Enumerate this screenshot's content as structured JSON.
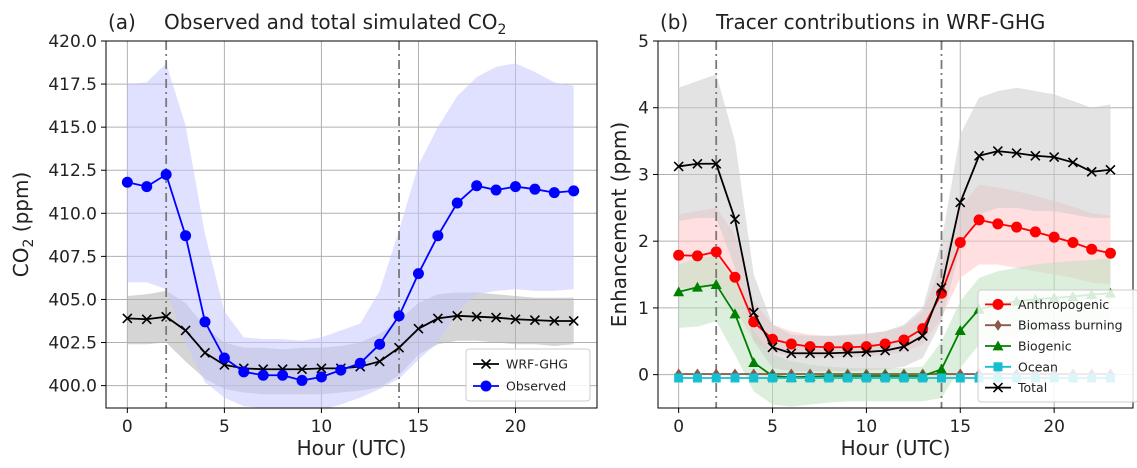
{
  "chart_data": [
    {
      "type": "line",
      "panel_label": "(a)",
      "title": "Observed and total simulated CO",
      "title_subscript": "2",
      "xlabel": "Hour (UTC)",
      "ylabel": "CO",
      "ylabel_subscript": "2",
      "ylabel_unit": " (ppm)",
      "xlim": [
        -1.1,
        24.2
      ],
      "ylim": [
        398.7,
        420.0
      ],
      "xticks": [
        0,
        5,
        10,
        15,
        20
      ],
      "yticks": [
        400.0,
        402.5,
        405.0,
        407.5,
        410.0,
        412.5,
        415.0,
        417.5,
        420.0
      ],
      "ytick_labels": [
        "400.0",
        "402.5",
        "405.0",
        "407.5",
        "410.0",
        "412.5",
        "415.0",
        "417.5",
        "420.0"
      ],
      "grid": true,
      "vlines": [
        2,
        14
      ],
      "legend_position": "lower-right",
      "x": [
        0,
        1,
        2,
        3,
        4,
        5,
        6,
        7,
        8,
        9,
        10,
        11,
        12,
        13,
        14,
        15,
        16,
        17,
        18,
        19,
        20,
        21,
        22,
        23
      ],
      "series": [
        {
          "name": "WRF-GHG",
          "color": "#000000",
          "marker": "x",
          "values": [
            403.9,
            403.85,
            404.0,
            403.2,
            401.9,
            401.2,
            401.0,
            400.95,
            400.95,
            400.95,
            401.0,
            401.0,
            401.1,
            401.4,
            402.2,
            403.3,
            403.9,
            404.05,
            404.0,
            403.95,
            403.85,
            403.8,
            403.75,
            403.75
          ],
          "band_lower": [
            402.4,
            402.4,
            402.5,
            401.4,
            400.4,
            399.8,
            399.6,
            399.5,
            399.5,
            399.5,
            399.5,
            399.6,
            399.7,
            399.9,
            400.6,
            401.8,
            402.4,
            402.6,
            402.6,
            402.5,
            402.4,
            402.4,
            402.3,
            402.4
          ],
          "band_upper": [
            405.2,
            405.3,
            405.5,
            404.8,
            403.4,
            402.5,
            402.2,
            402.2,
            402.1,
            402.2,
            402.2,
            402.3,
            402.5,
            403.0,
            403.8,
            404.8,
            405.3,
            405.4,
            405.4,
            405.3,
            405.2,
            405.1,
            405.1,
            405.1
          ],
          "band_color": "#b3b3b3"
        },
        {
          "name": "Observed",
          "color": "#0000ff",
          "marker": "o",
          "values": [
            411.8,
            411.55,
            412.25,
            408.7,
            403.7,
            401.6,
            400.8,
            400.6,
            400.6,
            400.3,
            400.5,
            400.9,
            401.3,
            402.4,
            404.05,
            406.5,
            408.7,
            410.6,
            411.6,
            411.35,
            411.55,
            411.4,
            411.2,
            411.3
          ],
          "band_lower": [
            406.0,
            406.0,
            405.6,
            402.5,
            400.2,
            399.3,
            398.8,
            398.7,
            398.7,
            398.6,
            398.6,
            398.9,
            399.3,
            399.8,
            400.4,
            401.5,
            402.5,
            404.3,
            405.3,
            405.5,
            405.6,
            405.5,
            405.5,
            405.6
          ],
          "band_upper": [
            417.5,
            417.6,
            418.7,
            415.1,
            408.8,
            404.3,
            402.8,
            402.7,
            402.7,
            402.6,
            402.8,
            403.2,
            403.6,
            405.5,
            409.0,
            412.8,
            415.0,
            416.8,
            417.9,
            418.5,
            418.7,
            418.2,
            417.6,
            417.4
          ],
          "band_color": "#c6c6ff"
        }
      ]
    },
    {
      "type": "line",
      "panel_label": "(b)",
      "title": "Tracer contributions in WRF-GHG",
      "xlabel": "Hour (UTC)",
      "ylabel": "Enhancement (ppm)",
      "xlim": [
        -1.1,
        24.2
      ],
      "ylim": [
        -0.5,
        5.0
      ],
      "xticks": [
        0,
        5,
        10,
        15,
        20
      ],
      "yticks": [
        0,
        1,
        2,
        3,
        4,
        5
      ],
      "ytick_labels": [
        "0",
        "1",
        "2",
        "3",
        "4",
        "5"
      ],
      "grid": true,
      "vlines": [
        2,
        14
      ],
      "legend_position": "lower-right",
      "x": [
        0,
        1,
        2,
        3,
        4,
        5,
        6,
        7,
        8,
        9,
        10,
        11,
        12,
        13,
        14,
        15,
        16,
        17,
        18,
        19,
        20,
        21,
        22,
        23
      ],
      "series": [
        {
          "name": "Anthropogenic",
          "color": "#ff0000",
          "marker": "o",
          "values": [
            1.79,
            1.78,
            1.84,
            1.46,
            0.79,
            0.53,
            0.46,
            0.42,
            0.41,
            0.41,
            0.42,
            0.46,
            0.52,
            0.69,
            1.22,
            1.98,
            2.32,
            2.26,
            2.21,
            2.14,
            2.06,
            1.98,
            1.88,
            1.82
          ],
          "band_lower": [
            1.3,
            1.3,
            1.35,
            1.0,
            0.5,
            0.33,
            0.28,
            0.26,
            0.26,
            0.26,
            0.27,
            0.3,
            0.34,
            0.45,
            0.85,
            1.45,
            1.65,
            1.65,
            1.6,
            1.55,
            1.5,
            1.45,
            1.38,
            1.35
          ],
          "band_upper": [
            2.4,
            2.45,
            2.5,
            2.1,
            1.1,
            0.75,
            0.65,
            0.6,
            0.58,
            0.58,
            0.6,
            0.65,
            0.72,
            0.95,
            1.65,
            2.5,
            2.85,
            2.8,
            2.75,
            2.68,
            2.6,
            2.52,
            2.42,
            2.38
          ],
          "band_color": "#ffc4c4"
        },
        {
          "name": "Biomass burning",
          "color": "#8c564b",
          "marker": "d",
          "values": [
            0.01,
            0.01,
            0.01,
            0.01,
            0.01,
            0.01,
            0.01,
            0.01,
            0.01,
            0.01,
            0.01,
            0.01,
            0.01,
            0.01,
            0.01,
            0.01,
            0.01,
            0.01,
            0.01,
            0.01,
            0.01,
            0.01,
            0.01,
            0.01
          ]
        },
        {
          "name": "Biogenic",
          "color": "#008000",
          "marker": "^",
          "values": [
            1.24,
            1.31,
            1.35,
            0.91,
            0.18,
            -0.02,
            -0.04,
            -0.03,
            -0.02,
            -0.02,
            -0.02,
            -0.02,
            -0.02,
            -0.02,
            0.08,
            0.66,
            0.98,
            1.05,
            1.1,
            1.13,
            1.15,
            1.17,
            1.2,
            1.22
          ],
          "band_lower": [
            0.7,
            0.72,
            0.8,
            0.3,
            -0.25,
            -0.45,
            -0.48,
            -0.45,
            -0.42,
            -0.4,
            -0.4,
            -0.4,
            -0.4,
            -0.4,
            -0.35,
            0.1,
            0.45,
            0.55,
            0.6,
            0.62,
            0.65,
            0.68,
            0.7,
            0.72
          ],
          "band_upper": [
            1.65,
            1.75,
            1.78,
            1.4,
            0.65,
            0.3,
            0.2,
            0.15,
            0.12,
            0.1,
            0.1,
            0.1,
            0.1,
            0.12,
            0.5,
            1.1,
            1.45,
            1.55,
            1.6,
            1.65,
            1.68,
            1.7,
            1.72,
            1.75
          ],
          "band_color": "#bfe0bf"
        },
        {
          "name": "Ocean",
          "color": "#17becf",
          "marker": "s",
          "values": [
            -0.05,
            -0.05,
            -0.05,
            -0.05,
            -0.05,
            -0.05,
            -0.05,
            -0.05,
            -0.05,
            -0.05,
            -0.05,
            -0.05,
            -0.05,
            -0.05,
            -0.05,
            -0.05,
            -0.05,
            -0.05,
            -0.05,
            -0.05,
            -0.05,
            -0.05,
            -0.05,
            -0.05
          ]
        },
        {
          "name": "Total",
          "color": "#000000",
          "marker": "x",
          "values": [
            3.12,
            3.16,
            3.16,
            2.33,
            0.93,
            0.41,
            0.32,
            0.32,
            0.32,
            0.33,
            0.34,
            0.36,
            0.42,
            0.58,
            1.3,
            2.58,
            3.28,
            3.35,
            3.32,
            3.28,
            3.26,
            3.18,
            3.04,
            3.07
          ],
          "band_lower": [
            2.3,
            2.35,
            2.35,
            1.6,
            0.5,
            0.1,
            0.05,
            0.05,
            0.05,
            0.05,
            0.06,
            0.08,
            0.12,
            0.25,
            0.8,
            1.9,
            2.4,
            2.5,
            2.5,
            2.45,
            2.45,
            2.4,
            2.35,
            2.35
          ],
          "band_upper": [
            4.3,
            4.4,
            4.5,
            3.5,
            1.5,
            0.75,
            0.6,
            0.58,
            0.58,
            0.6,
            0.62,
            0.65,
            0.75,
            1.0,
            2.0,
            3.6,
            4.15,
            4.25,
            4.3,
            4.25,
            4.2,
            4.1,
            4.0,
            4.05
          ],
          "band_color": "#cccccc"
        }
      ]
    }
  ]
}
